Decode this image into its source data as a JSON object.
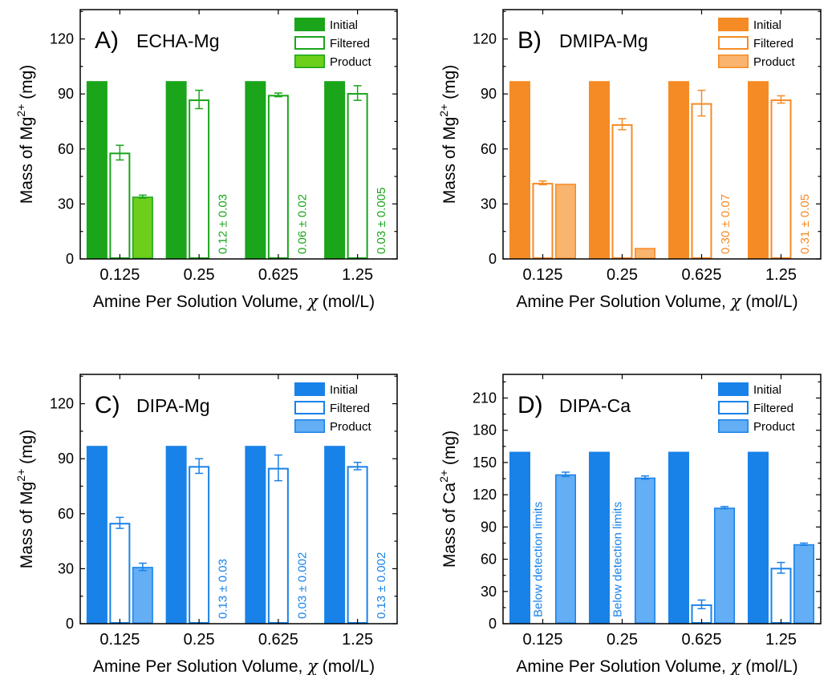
{
  "chart_data": [
    {
      "type": "bar",
      "panel_label": "A)",
      "title": "ECHA-Mg",
      "color": "#1aa51a",
      "product_fill": "#6ccf1a",
      "xlabel_main": "Amine Per Solution Volume,",
      "xlabel_symbol": "χ",
      "xlabel_unit": "(mol/L)",
      "ylabel_main": "Mass of Mg",
      "ylabel_sup": "2+",
      "ylabel_unit": "(mg)",
      "categories": [
        "0.125",
        "0.25",
        "0.625",
        "1.25"
      ],
      "ylim": [
        0,
        136
      ],
      "yticks": [
        0,
        30,
        60,
        90,
        120
      ],
      "legend": [
        "Initial",
        "Filtered",
        "Product"
      ],
      "series": [
        {
          "name": "Initial",
          "values": [
            97,
            97,
            97,
            97
          ],
          "errors": [
            0,
            0,
            0,
            0
          ]
        },
        {
          "name": "Filtered",
          "values": [
            58,
            87,
            89.5,
            90.5
          ],
          "errors": [
            4,
            5,
            1,
            4
          ]
        },
        {
          "name": "Product",
          "values": [
            34,
            null,
            null,
            null
          ],
          "errors": [
            0.8,
            0,
            0,
            0
          ]
        }
      ],
      "annotations": [
        "",
        "0.12 ± 0.03",
        "0.06 ± 0.02",
        "0.03 ± 0.005"
      ]
    },
    {
      "type": "bar",
      "panel_label": "B)",
      "title": "DMIPA-Mg",
      "color": "#f58b25",
      "product_fill": "#f9b46e",
      "xlabel_main": "Amine Per Solution Volume,",
      "xlabel_symbol": "χ",
      "xlabel_unit": "(mol/L)",
      "ylabel_main": "Mass of Mg",
      "ylabel_sup": "2+",
      "ylabel_unit": "(mg)",
      "categories": [
        "0.125",
        "0.25",
        "0.625",
        "1.25"
      ],
      "ylim": [
        0,
        136
      ],
      "yticks": [
        0,
        30,
        60,
        90,
        120
      ],
      "legend": [
        "Initial",
        "Filtered",
        "Product"
      ],
      "series": [
        {
          "name": "Initial",
          "values": [
            97,
            97,
            97,
            97
          ],
          "errors": [
            0,
            0,
            0,
            0
          ]
        },
        {
          "name": "Filtered",
          "values": [
            41.5,
            73.5,
            85,
            87
          ],
          "errors": [
            1,
            3,
            7,
            2
          ]
        },
        {
          "name": "Product",
          "values": [
            41,
            6,
            null,
            null
          ],
          "errors": [
            0,
            0,
            0,
            0
          ]
        }
      ],
      "annotations": [
        "",
        "",
        "0.30 ± 0.07",
        "0.31 ± 0.05"
      ]
    },
    {
      "type": "bar",
      "panel_label": "C)",
      "title": "DIPA-Mg",
      "color": "#1982e8",
      "product_fill": "#63aef5",
      "xlabel_main": "Amine Per Solution Volume,",
      "xlabel_symbol": "χ",
      "xlabel_unit": "(mol/L)",
      "ylabel_main": "Mass of Mg",
      "ylabel_sup": "2+",
      "ylabel_unit": "(mg)",
      "categories": [
        "0.125",
        "0.25",
        "0.625",
        "1.25"
      ],
      "ylim": [
        0,
        136
      ],
      "yticks": [
        0,
        30,
        60,
        90,
        120
      ],
      "legend": [
        "Initial",
        "Filtered",
        "Product"
      ],
      "series": [
        {
          "name": "Initial",
          "values": [
            97,
            97,
            97,
            97
          ],
          "errors": [
            0,
            0,
            0,
            0
          ]
        },
        {
          "name": "Filtered",
          "values": [
            55,
            86,
            85,
            86
          ],
          "errors": [
            3,
            4,
            7,
            2
          ]
        },
        {
          "name": "Product",
          "values": [
            31,
            null,
            null,
            null
          ],
          "errors": [
            2,
            0,
            0,
            0
          ]
        }
      ],
      "annotations": [
        "",
        "0.13 ± 0.03",
        "0.03 ± 0.002",
        "0.13 ± 0.002"
      ]
    },
    {
      "type": "bar",
      "panel_label": "D)",
      "title": "DIPA-Ca",
      "color": "#1982e8",
      "product_fill": "#63aef5",
      "xlabel_main": "Amine Per Solution Volume,",
      "xlabel_symbol": "χ",
      "xlabel_unit": "(mol/L)",
      "ylabel_main": "Mass of Ca",
      "ylabel_sup": "2+",
      "ylabel_unit": "(mg)",
      "categories": [
        "0.125",
        "0.25",
        "0.625",
        "1.25"
      ],
      "ylim": [
        0,
        232
      ],
      "yticks": [
        0,
        30,
        60,
        90,
        120,
        150,
        180,
        210
      ],
      "legend": [
        "Initial",
        "Filtered",
        "Product"
      ],
      "series": [
        {
          "name": "Initial",
          "values": [
            160,
            160,
            160,
            160
          ],
          "errors": [
            0,
            0,
            0,
            0
          ]
        },
        {
          "name": "Filtered",
          "values": [
            null,
            null,
            18,
            52
          ],
          "errors": [
            0,
            0,
            4,
            5
          ]
        },
        {
          "name": "Product",
          "values": [
            139,
            136,
            108,
            74
          ],
          "errors": [
            2,
            1.5,
            1,
            1
          ]
        }
      ],
      "annotations": [
        "Below detection limits",
        "Below detection limits",
        "",
        ""
      ]
    }
  ]
}
